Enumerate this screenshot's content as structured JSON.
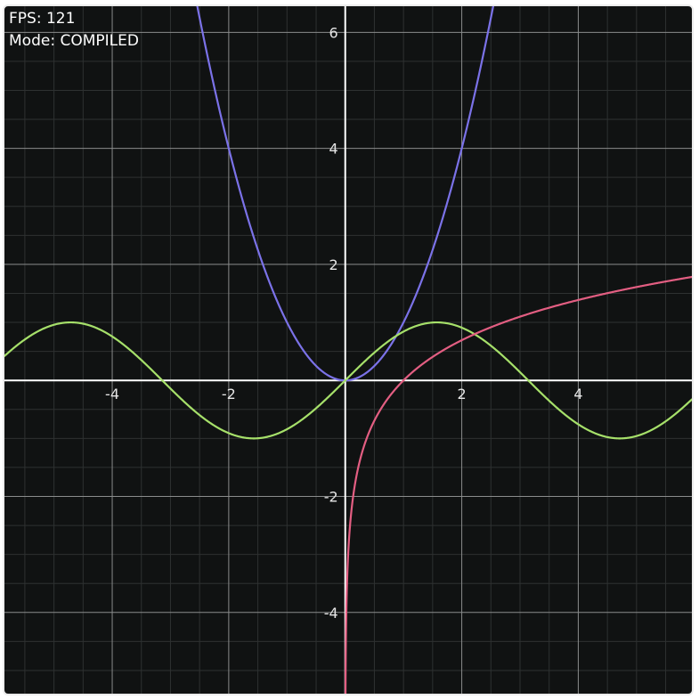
{
  "hud": {
    "fps_label": "FPS: 121",
    "mode_label": "Mode: COMPILED"
  },
  "colors": {
    "background": "#101212",
    "grid_major": "#8a8c8c",
    "grid_minor": "#2e3131",
    "axis": "#ffffff",
    "frame_border": "#ececec"
  },
  "chart_data": {
    "type": "line",
    "title": "",
    "xlabel": "",
    "ylabel": "",
    "xlim": [
      -5.85,
      5.95
    ],
    "ylim": [
      -5.4,
      6.45
    ],
    "grid": true,
    "major_step": 2,
    "minor_step": 0.5,
    "x_ticks": [
      -4,
      -2,
      2,
      4
    ],
    "y_ticks": [
      6,
      4,
      2,
      -2,
      -4
    ],
    "x_tick_labels": [
      "-4",
      "-2",
      "2",
      "4"
    ],
    "y_tick_labels": [
      "6",
      "4",
      "2",
      "-2",
      "-4"
    ],
    "series": [
      {
        "function": "x^2",
        "color": "#7b72e8",
        "domain": [
          -5.85,
          5.95
        ]
      },
      {
        "function": "sin(x)",
        "color": "#a6e06a",
        "domain": [
          -5.85,
          5.95
        ]
      },
      {
        "function": "ln(x)",
        "color": "#e35e82",
        "domain": [
          0.004,
          5.95
        ]
      }
    ]
  }
}
